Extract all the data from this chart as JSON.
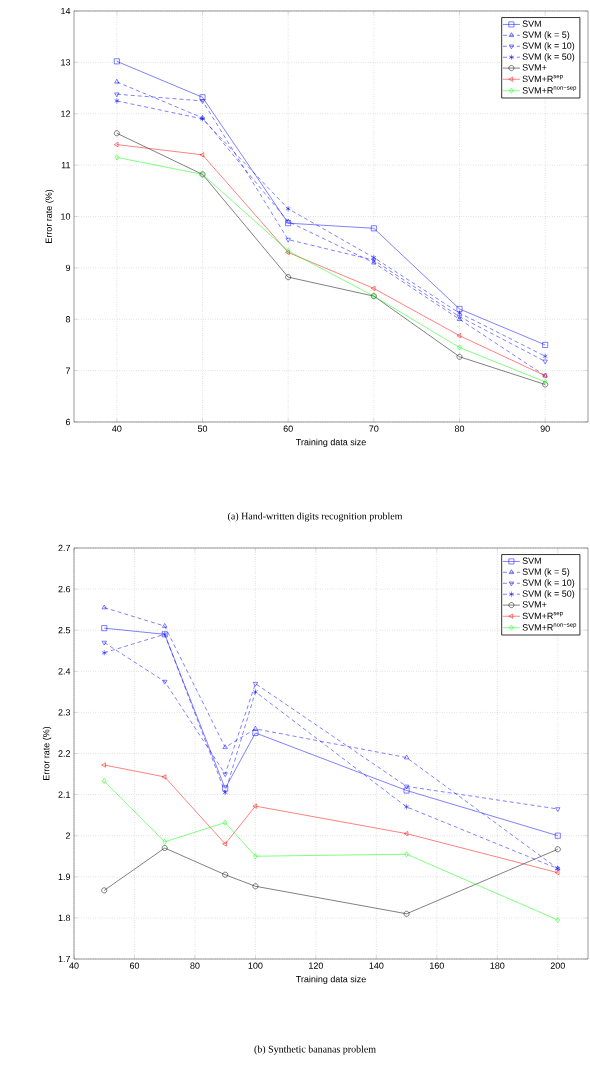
{
  "chart_data": [
    {
      "type": "line",
      "title": "(a) Hand-written digits recognition problem",
      "xlabel": "Training data size",
      "ylabel": "Error rate (%)",
      "x": [
        40,
        50,
        60,
        70,
        80,
        90
      ],
      "xlim": [
        35,
        95
      ],
      "xticks": [
        40,
        50,
        60,
        70,
        80,
        90
      ],
      "ylim": [
        6,
        14
      ],
      "yticks": [
        6,
        7,
        8,
        9,
        10,
        11,
        12,
        13,
        14
      ],
      "grid": true,
      "legend": "top right",
      "series": [
        {
          "name": "SVM",
          "color": "#0000ff",
          "marker": "square",
          "line_style": "solid",
          "values": [
            13.02,
            12.32,
            9.87,
            9.77,
            8.2,
            7.5
          ]
        },
        {
          "name": "SVM (k = 5)",
          "color": "#0000ff",
          "marker": "triangle",
          "line_style": "dashed",
          "values": [
            12.62,
            11.92,
            9.9,
            9.1,
            8.0,
            6.9
          ]
        },
        {
          "name": "SVM (k = 10)",
          "color": "#0000ff",
          "marker": "triangle-down",
          "line_style": "dashed",
          "values": [
            12.38,
            12.25,
            9.55,
            9.15,
            8.05,
            7.18
          ]
        },
        {
          "name": "SVM (k = 50)",
          "color": "#0000ff",
          "marker": "cross",
          "line_style": "dashed",
          "values": [
            12.25,
            11.9,
            10.15,
            9.2,
            8.12,
            7.28
          ]
        },
        {
          "name": "SVM+",
          "color": "#000000",
          "marker": "circle",
          "line_style": "solid",
          "values": [
            11.62,
            10.82,
            8.82,
            8.45,
            7.27,
            6.73
          ]
        },
        {
          "name": "SVM+R$^{sep}$",
          "color": "#ff0000",
          "marker": "triangle-left",
          "line_style": "solid",
          "values": [
            11.4,
            11.2,
            9.3,
            8.6,
            7.68,
            6.9
          ]
        },
        {
          "name": "SVM+R$^{non−sep}$",
          "color": "#00ff00",
          "marker": "diamond",
          "line_style": "solid",
          "values": [
            11.15,
            10.82,
            9.33,
            8.45,
            7.45,
            6.78
          ]
        }
      ]
    },
    {
      "type": "line",
      "title": "(b) Synthetic bananas problem",
      "xlabel": "Training data size",
      "ylabel": "Error rate (%)",
      "x": [
        50,
        70,
        90,
        100,
        150,
        200
      ],
      "xlim": [
        40,
        210
      ],
      "xticks": [
        40,
        60,
        80,
        100,
        120,
        140,
        160,
        180,
        200
      ],
      "ylim": [
        1.7,
        2.7
      ],
      "yticks": [
        1.7,
        1.8,
        1.9,
        2,
        2.1,
        2.2,
        2.3,
        2.4,
        2.5,
        2.6,
        2.7
      ],
      "grid": true,
      "legend": "top right",
      "series": [
        {
          "name": "SVM",
          "color": "#0000ff",
          "marker": "square",
          "line_style": "solid",
          "values": [
            2.505,
            2.49,
            2.115,
            2.25,
            2.11,
            2.0
          ]
        },
        {
          "name": "SVM (k = 5)",
          "color": "#0000ff",
          "marker": "triangle",
          "line_style": "dashed",
          "values": [
            2.555,
            2.51,
            2.215,
            2.26,
            2.19,
            1.92
          ]
        },
        {
          "name": "SVM (k = 10)",
          "color": "#0000ff",
          "marker": "triangle-down",
          "line_style": "dashed",
          "values": [
            2.47,
            2.375,
            2.15,
            2.37,
            2.12,
            2.065
          ]
        },
        {
          "name": "SVM (k = 50)",
          "color": "#0000ff",
          "marker": "cross",
          "line_style": "dashed",
          "values": [
            2.445,
            2.49,
            2.105,
            2.35,
            2.07,
            1.92
          ]
        },
        {
          "name": "SVM+",
          "color": "#000000",
          "marker": "circle",
          "line_style": "solid",
          "values": [
            1.867,
            1.97,
            1.905,
            1.877,
            1.81,
            1.967
          ]
        },
        {
          "name": "SVM+R$^{sep}$",
          "color": "#ff0000",
          "marker": "triangle-left",
          "line_style": "solid",
          "values": [
            2.172,
            2.143,
            1.98,
            2.072,
            2.005,
            1.91
          ]
        },
        {
          "name": "SVM+R$^{non−sep}$",
          "color": "#00ff00",
          "marker": "diamond",
          "line_style": "solid",
          "values": [
            2.133,
            1.985,
            2.032,
            1.95,
            1.955,
            1.795
          ]
        }
      ]
    }
  ]
}
